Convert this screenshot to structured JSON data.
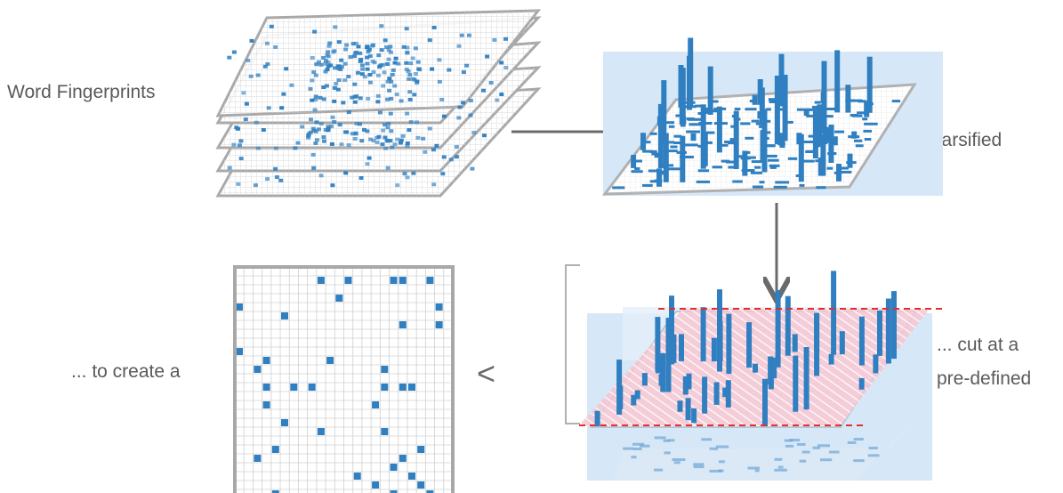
{
  "labels": {
    "word_fingerprints": "Word Fingerprints",
    "sparsified": "... sparsified",
    "cut_line1": "... cut at a",
    "cut_line2": "pre-defined",
    "to_create": "... to create a"
  },
  "icons": {
    "arrow_left_symbol": "<"
  },
  "colors": {
    "cell_blue": "#2f7fc1",
    "panel_bg": "#d6e8f7",
    "grid_line": "#c8c8c8",
    "frame_gray": "#a8a8a8",
    "cut_line_red": "#e03030",
    "cut_fill": "#f3b3c3",
    "arrow_gray": "#6a6a6a"
  }
}
